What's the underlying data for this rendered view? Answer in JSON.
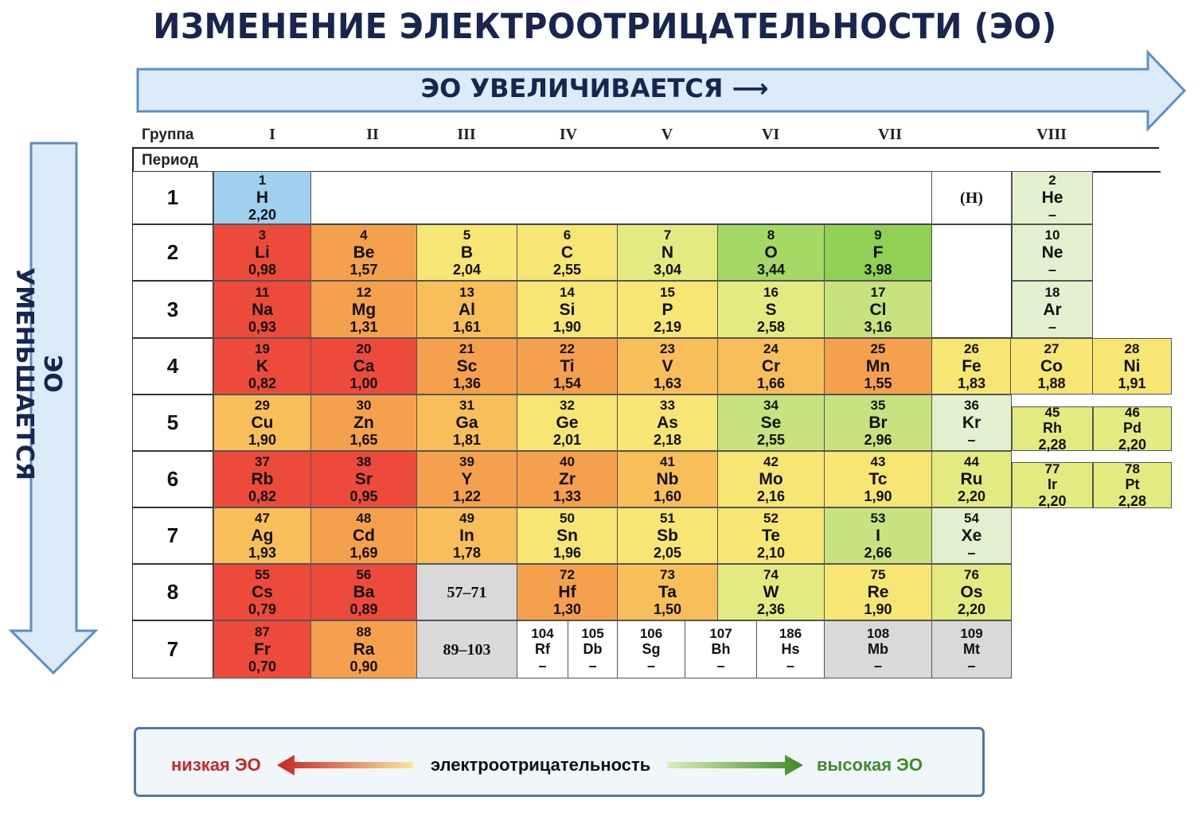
{
  "title": "ИЗМЕНЕНИЕ ЭЛЕКТРООТРИЦАТЕЛЬНОСТИ (ЭО)",
  "h_arrow_label": "ЭО УВЕЛИЧИВАЕТСЯ",
  "v_arrow_label": "ЭО УМЕНЬШАЕТСЯ",
  "table": {
    "group_label": "Группа",
    "period_label": "Период",
    "groups": [
      "I",
      "II",
      "III",
      "IV",
      "V",
      "VI",
      "VII",
      "VIII"
    ],
    "periods": [
      "1",
      "2",
      "3",
      "4",
      "5",
      "6",
      "7",
      "8",
      "7"
    ]
  },
  "colors": {
    "red": "#ee4a3c",
    "orange": "#f5a04c",
    "light_orange": "#f8be5a",
    "yellow": "#f7e574",
    "yellow_green": "#e3ea80",
    "light_green": "#c7e27e",
    "green": "#a5d865",
    "bright_green": "#8fd055",
    "pale_green": "#e3f0cf",
    "blue": "#9fd0f0",
    "gray": "#d9d9d9",
    "white": "#ffffff",
    "title": "#18264f",
    "arrow_fill": "#dcebfa",
    "arrow_stroke": "#5b8fc6"
  },
  "elements": [
    {
      "id": "h",
      "z": "1",
      "sym": "H",
      "en": "2,20",
      "color": "blue"
    },
    {
      "id": "h-group8",
      "label": "(H)",
      "color": "white"
    },
    {
      "id": "he",
      "z": "2",
      "sym": "He",
      "en": "–",
      "color": "pale_green"
    },
    {
      "id": "li",
      "z": "3",
      "sym": "Li",
      "en": "0,98",
      "color": "red"
    },
    {
      "id": "be",
      "z": "4",
      "sym": "Be",
      "en": "1,57",
      "color": "orange"
    },
    {
      "id": "b",
      "z": "5",
      "sym": "B",
      "en": "2,04",
      "color": "yellow"
    },
    {
      "id": "c",
      "z": "6",
      "sym": "C",
      "en": "2,55",
      "color": "yellow"
    },
    {
      "id": "n",
      "z": "7",
      "sym": "N",
      "en": "3,04",
      "color": "yellow_green"
    },
    {
      "id": "o",
      "z": "8",
      "sym": "O",
      "en": "3,44",
      "color": "green"
    },
    {
      "id": "f",
      "z": "9",
      "sym": "F",
      "en": "3,98",
      "color": "bright_green"
    },
    {
      "id": "ne",
      "z": "10",
      "sym": "Ne",
      "en": "–",
      "color": "pale_green"
    },
    {
      "id": "na",
      "z": "11",
      "sym": "Na",
      "en": "0,93",
      "color": "red"
    },
    {
      "id": "mg",
      "z": "12",
      "sym": "Mg",
      "en": "1,31",
      "color": "orange"
    },
    {
      "id": "al",
      "z": "13",
      "sym": "Al",
      "en": "1,61",
      "color": "light_orange"
    },
    {
      "id": "si",
      "z": "14",
      "sym": "Si",
      "en": "1,90",
      "color": "yellow"
    },
    {
      "id": "p",
      "z": "15",
      "sym": "P",
      "en": "2,19",
      "color": "yellow"
    },
    {
      "id": "s",
      "z": "16",
      "sym": "S",
      "en": "2,58",
      "color": "yellow_green"
    },
    {
      "id": "cl",
      "z": "17",
      "sym": "Cl",
      "en": "3,16",
      "color": "light_green"
    },
    {
      "id": "ar",
      "z": "18",
      "sym": "Ar",
      "en": "–",
      "color": "pale_green"
    },
    {
      "id": "k",
      "z": "19",
      "sym": "K",
      "en": "0,82",
      "color": "red"
    },
    {
      "id": "ca",
      "z": "20",
      "sym": "Ca",
      "en": "1,00",
      "color": "red"
    },
    {
      "id": "sc",
      "z": "21",
      "sym": "Sc",
      "en": "1,36",
      "color": "orange"
    },
    {
      "id": "ti",
      "z": "22",
      "sym": "Ti",
      "en": "1,54",
      "color": "orange"
    },
    {
      "id": "v",
      "z": "23",
      "sym": "V",
      "en": "1,63",
      "color": "light_orange"
    },
    {
      "id": "cr",
      "z": "24",
      "sym": "Cr",
      "en": "1,66",
      "color": "light_orange"
    },
    {
      "id": "mn",
      "z": "25",
      "sym": "Mn",
      "en": "1,55",
      "color": "orange"
    },
    {
      "id": "fe",
      "z": "26",
      "sym": "Fe",
      "en": "1,83",
      "color": "yellow"
    },
    {
      "id": "co",
      "z": "27",
      "sym": "Co",
      "en": "1,88",
      "color": "yellow"
    },
    {
      "id": "ni",
      "z": "28",
      "sym": "Ni",
      "en": "1,91",
      "color": "yellow"
    },
    {
      "id": "cu",
      "z": "29",
      "sym": "Cu",
      "en": "1,90",
      "color": "light_orange"
    },
    {
      "id": "zn",
      "z": "30",
      "sym": "Zn",
      "en": "1,65",
      "color": "orange"
    },
    {
      "id": "ga",
      "z": "31",
      "sym": "Ga",
      "en": "1,81",
      "color": "light_orange"
    },
    {
      "id": "ge",
      "z": "32",
      "sym": "Ge",
      "en": "2,01",
      "color": "yellow"
    },
    {
      "id": "as",
      "z": "33",
      "sym": "As",
      "en": "2,18",
      "color": "yellow"
    },
    {
      "id": "se",
      "z": "34",
      "sym": "Se",
      "en": "2,55",
      "color": "light_green"
    },
    {
      "id": "br",
      "z": "35",
      "sym": "Br",
      "en": "2,96",
      "color": "light_green"
    },
    {
      "id": "kr",
      "z": "36",
      "sym": "Kr",
      "en": "–",
      "color": "pale_green"
    },
    {
      "id": "rh",
      "z": "45",
      "sym": "Rh",
      "en": "2,28",
      "color": "yellow_green"
    },
    {
      "id": "pd",
      "z": "46",
      "sym": "Pd",
      "en": "2,20",
      "color": "yellow_green"
    },
    {
      "id": "rb",
      "z": "37",
      "sym": "Rb",
      "en": "0,82",
      "color": "red"
    },
    {
      "id": "sr",
      "z": "38",
      "sym": "Sr",
      "en": "0,95",
      "color": "red"
    },
    {
      "id": "y",
      "z": "39",
      "sym": "Y",
      "en": "1,22",
      "color": "orange"
    },
    {
      "id": "zr",
      "z": "40",
      "sym": "Zr",
      "en": "1,33",
      "color": "orange"
    },
    {
      "id": "nb",
      "z": "41",
      "sym": "Nb",
      "en": "1,60",
      "color": "light_orange"
    },
    {
      "id": "mo",
      "z": "42",
      "sym": "Mo",
      "en": "2,16",
      "color": "yellow"
    },
    {
      "id": "tc",
      "z": "43",
      "sym": "Tc",
      "en": "1,90",
      "color": "yellow"
    },
    {
      "id": "ru",
      "z": "44",
      "sym": "Ru",
      "en": "2,20",
      "color": "yellow_green"
    },
    {
      "id": "ir",
      "z": "77",
      "sym": "Ir",
      "en": "2,20",
      "color": "yellow_green"
    },
    {
      "id": "pt",
      "z": "78",
      "sym": "Pt",
      "en": "2,28",
      "color": "yellow_green"
    },
    {
      "id": "ag",
      "z": "47",
      "sym": "Ag",
      "en": "1,93",
      "color": "light_orange"
    },
    {
      "id": "cd",
      "z": "48",
      "sym": "Cd",
      "en": "1,69",
      "color": "orange"
    },
    {
      "id": "in",
      "z": "49",
      "sym": "In",
      "en": "1,78",
      "color": "light_orange"
    },
    {
      "id": "sn",
      "z": "50",
      "sym": "Sn",
      "en": "1,96",
      "color": "yellow"
    },
    {
      "id": "sb",
      "z": "51",
      "sym": "Sb",
      "en": "2,05",
      "color": "yellow"
    },
    {
      "id": "te",
      "z": "52",
      "sym": "Te",
      "en": "2,10",
      "color": "yellow"
    },
    {
      "id": "i",
      "z": "53",
      "sym": "I",
      "en": "2,66",
      "color": "light_green"
    },
    {
      "id": "xe",
      "z": "54",
      "sym": "Xe",
      "en": "–",
      "color": "pale_green"
    },
    {
      "id": "cs",
      "z": "55",
      "sym": "Cs",
      "en": "0,79",
      "color": "red"
    },
    {
      "id": "ba",
      "z": "56",
      "sym": "Ba",
      "en": "0,89",
      "color": "red"
    },
    {
      "id": "lanthanides",
      "label": "57–71",
      "color": "gray"
    },
    {
      "id": "hf",
      "z": "72",
      "sym": "Hf",
      "en": "1,30",
      "color": "orange"
    },
    {
      "id": "ta",
      "z": "73",
      "sym": "Ta",
      "en": "1,50",
      "color": "light_orange"
    },
    {
      "id": "w",
      "z": "74",
      "sym": "W",
      "en": "2,36",
      "color": "yellow_green"
    },
    {
      "id": "re",
      "z": "75",
      "sym": "Re",
      "en": "1,90",
      "color": "yellow"
    },
    {
      "id": "os",
      "z": "76",
      "sym": "Os",
      "en": "2,20",
      "color": "yellow_green"
    },
    {
      "id": "fr",
      "z": "87",
      "sym": "Fr",
      "en": "0,70",
      "color": "red"
    },
    {
      "id": "ra",
      "z": "88",
      "sym": "Ra",
      "en": "0,90",
      "color": "orange"
    },
    {
      "id": "actinides",
      "label": "89–103",
      "color": "gray"
    },
    {
      "id": "rf",
      "z": "104",
      "sym": "Rf",
      "en": "–",
      "color": "white"
    },
    {
      "id": "db",
      "z": "105",
      "sym": "Db",
      "en": "–",
      "color": "white"
    },
    {
      "id": "sg",
      "z": "106",
      "sym": "Sg",
      "en": "–",
      "color": "white"
    },
    {
      "id": "bh",
      "z": "107",
      "sym": "Bh",
      "en": "–",
      "color": "white"
    },
    {
      "id": "hs",
      "z": "186",
      "sym": "Hs",
      "en": "–",
      "color": "white"
    },
    {
      "id": "mb",
      "z": "108",
      "sym": "Mb",
      "en": "–",
      "color": "gray"
    },
    {
      "id": "mt",
      "z": "109",
      "sym": "Mt",
      "en": "–",
      "color": "gray"
    }
  ],
  "legend": {
    "low": "низкая ЭО",
    "middle": "электроотрицательность",
    "high": "высокая ЭО",
    "low_color": "#c62828",
    "high_color": "#3f8a2a"
  }
}
